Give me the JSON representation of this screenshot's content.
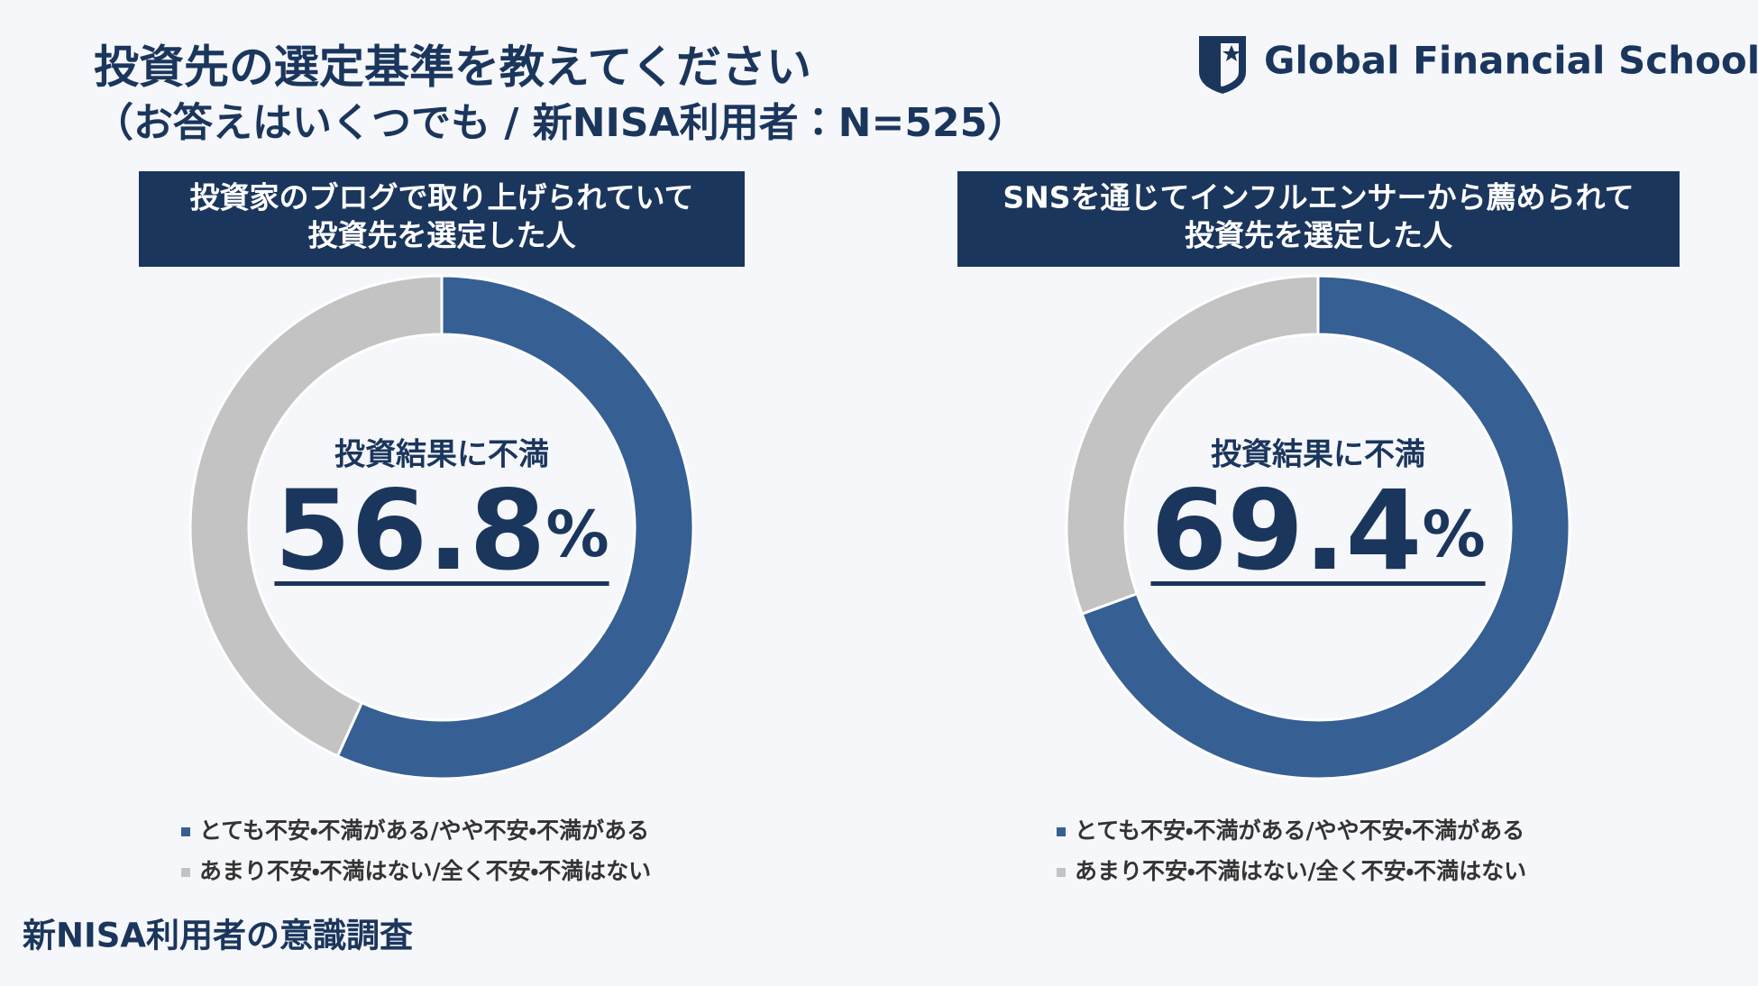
{
  "header": {
    "title": "投資先の選定基準を教えてください",
    "subtitle": "（お答えはいくつでも / 新NISA利用者：N=525）",
    "logo": "Global Financial School"
  },
  "footer": "新NISA利用者の意識調査",
  "chart_data": [
    {
      "type": "pie",
      "title": [
        "投資家のブログで取り上げられていて",
        "投資先を選定した人"
      ],
      "center_label": "投資結果に不満",
      "categories": [
        "とても不安・不満がある/やや不安・不満がある",
        "あまり不安・不満はない/全く不安・不満はない"
      ],
      "values": [
        56.8,
        43.2
      ],
      "value_labels": [
        "56.8%",
        null
      ],
      "colors": [
        "#365f94",
        "#c3c3c3"
      ],
      "donut": true
    },
    {
      "type": "pie",
      "title": [
        "SNSを通じてインフルエンサーから薦められて",
        "投資先を選定した人"
      ],
      "center_label": "投資結果に不満",
      "categories": [
        "とても不安・不満がある/やや不安・不満がある",
        "あまり不安・不満はない/全く不安・不満はない"
      ],
      "values": [
        69.4,
        30.6
      ],
      "value_labels": [
        "69.4%",
        null
      ],
      "colors": [
        "#365f94",
        "#c3c3c3"
      ],
      "donut": true
    }
  ]
}
